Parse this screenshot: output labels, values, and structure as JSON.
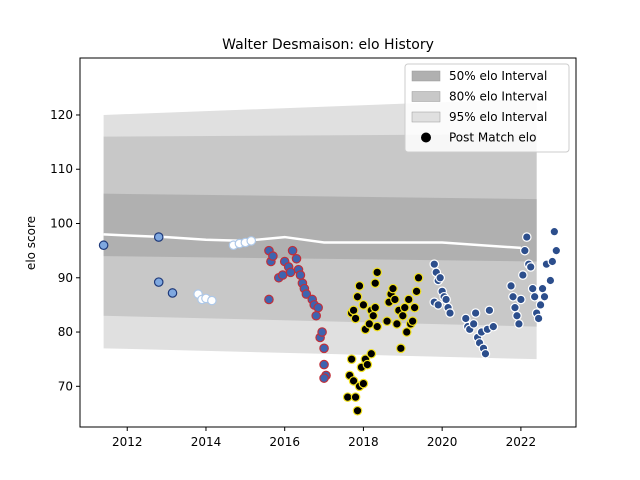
{
  "chart_data": {
    "type": "scatter",
    "title": "Walter Desmaison: elo History",
    "xlabel": "",
    "ylabel": "elo score",
    "xlim": [
      2010.8,
      2023.4
    ],
    "ylim": [
      62.5,
      130.5
    ],
    "xticks": [
      2012,
      2014,
      2016,
      2018,
      2020,
      2022
    ],
    "yticks": [
      70,
      80,
      90,
      100,
      110,
      120
    ],
    "grid": false,
    "legend_position": "upper right",
    "intervals": [
      {
        "name": "50% elo Interval",
        "color": "#b0b0b0",
        "x": [
          2011.4,
          2022.4
        ],
        "lower": [
          94.0,
          93.0
        ],
        "upper": [
          105.5,
          104.5
        ]
      },
      {
        "name": "80% elo Interval",
        "color": "#c8c8c8",
        "x": [
          2011.4,
          2022.4
        ],
        "lower": [
          83.0,
          81.0
        ],
        "upper": [
          116.0,
          116.5
        ]
      },
      {
        "name": "95% elo Interval",
        "color": "#e0e0e0",
        "x": [
          2011.4,
          2022.4
        ],
        "lower": [
          77.0,
          75.0
        ],
        "upper": [
          120.0,
          123.0
        ]
      }
    ],
    "mean_line": {
      "color": "#ffffff",
      "points": [
        [
          2011.4,
          98.0
        ],
        [
          2012.0,
          97.8
        ],
        [
          2013.0,
          97.5
        ],
        [
          2014.0,
          97.0
        ],
        [
          2015.0,
          96.8
        ],
        [
          2016.0,
          97.5
        ],
        [
          2017.0,
          96.5
        ],
        [
          2018.0,
          96.5
        ],
        [
          2019.0,
          96.5
        ],
        [
          2020.0,
          96.5
        ],
        [
          2021.0,
          96.0
        ],
        [
          2022.0,
          95.5
        ]
      ]
    },
    "series": [
      {
        "name": "Post Match elo",
        "fill": "#7fa8e0",
        "edge": "#1f3a7a",
        "points": [
          [
            2011.4,
            96.0
          ],
          [
            2012.8,
            97.5
          ],
          [
            2012.8,
            89.2
          ],
          [
            2013.15,
            87.2
          ]
        ]
      },
      {
        "fill": "#ffffff",
        "edge": "#aec8e8",
        "points": [
          [
            2013.8,
            87.0
          ],
          [
            2013.9,
            86.0
          ],
          [
            2014.0,
            86.2
          ],
          [
            2014.15,
            85.8
          ],
          [
            2014.7,
            96.0
          ],
          [
            2014.85,
            96.3
          ],
          [
            2015.0,
            96.5
          ],
          [
            2015.15,
            96.8
          ]
        ]
      },
      {
        "fill": "#3e64b0",
        "edge": "#c0303a",
        "points": [
          [
            2015.6,
            86.0
          ],
          [
            2015.6,
            95.0
          ],
          [
            2015.65,
            93.0
          ],
          [
            2015.7,
            94.0
          ],
          [
            2015.85,
            90.0
          ],
          [
            2015.95,
            90.5
          ],
          [
            2016.0,
            93.0
          ],
          [
            2016.1,
            92.0
          ],
          [
            2016.15,
            91.0
          ],
          [
            2016.2,
            95.0
          ],
          [
            2016.3,
            93.5
          ],
          [
            2016.35,
            91.5
          ],
          [
            2016.4,
            90.5
          ],
          [
            2016.45,
            89.0
          ],
          [
            2016.5,
            88.0
          ],
          [
            2016.55,
            87.0
          ],
          [
            2016.7,
            86.0
          ],
          [
            2016.75,
            85.0
          ],
          [
            2016.8,
            83.0
          ],
          [
            2016.85,
            84.5
          ],
          [
            2016.9,
            79.0
          ],
          [
            2016.95,
            80.0
          ],
          [
            2017.0,
            77.0
          ],
          [
            2017.0,
            74.0
          ],
          [
            2017.05,
            72.0
          ],
          [
            2017.0,
            71.5
          ]
        ]
      },
      {
        "fill": "#000000",
        "edge": "#f0e020",
        "points": [
          [
            2017.6,
            68.0
          ],
          [
            2017.65,
            72.0
          ],
          [
            2017.7,
            75.0
          ],
          [
            2017.75,
            71.0
          ],
          [
            2017.8,
            68.0
          ],
          [
            2017.85,
            65.5
          ],
          [
            2017.9,
            70.0
          ],
          [
            2017.95,
            73.5
          ],
          [
            2018.0,
            70.5
          ],
          [
            2018.05,
            75.0
          ],
          [
            2018.1,
            74.0
          ],
          [
            2018.2,
            76.0
          ],
          [
            2017.7,
            83.5
          ],
          [
            2017.75,
            84.0
          ],
          [
            2017.8,
            82.5
          ],
          [
            2017.85,
            86.5
          ],
          [
            2017.9,
            88.5
          ],
          [
            2018.0,
            85.0
          ],
          [
            2018.05,
            80.5
          ],
          [
            2018.15,
            81.5
          ],
          [
            2018.2,
            84.0
          ],
          [
            2018.25,
            83.0
          ],
          [
            2018.3,
            84.5
          ],
          [
            2018.35,
            81.0
          ],
          [
            2018.3,
            89.0
          ],
          [
            2018.35,
            91.0
          ],
          [
            2018.6,
            82.0
          ],
          [
            2018.65,
            85.5
          ],
          [
            2018.7,
            87.0
          ],
          [
            2018.75,
            88.0
          ],
          [
            2018.8,
            86.0
          ],
          [
            2018.85,
            81.5
          ],
          [
            2018.9,
            84.0
          ],
          [
            2018.95,
            77.0
          ],
          [
            2019.0,
            83.0
          ],
          [
            2019.05,
            84.5
          ],
          [
            2019.1,
            80.0
          ],
          [
            2019.15,
            86.0
          ],
          [
            2019.2,
            81.5
          ],
          [
            2019.25,
            82.0
          ],
          [
            2019.3,
            84.5
          ],
          [
            2019.35,
            87.5
          ],
          [
            2019.4,
            90.0
          ]
        ]
      },
      {
        "fill": "#2c4e8c",
        "edge": "#ffffff",
        "points": [
          [
            2019.8,
            92.5
          ],
          [
            2019.85,
            91.0
          ],
          [
            2019.9,
            89.5
          ],
          [
            2019.95,
            90.0
          ],
          [
            2020.0,
            87.5
          ],
          [
            2020.05,
            86.5
          ],
          [
            2019.8,
            85.5
          ],
          [
            2019.9,
            85.0
          ],
          [
            2020.1,
            86.0
          ],
          [
            2020.15,
            84.5
          ],
          [
            2020.2,
            83.5
          ],
          [
            2020.6,
            82.5
          ],
          [
            2020.65,
            81.0
          ],
          [
            2020.7,
            80.5
          ],
          [
            2020.8,
            81.5
          ],
          [
            2020.85,
            83.5
          ],
          [
            2020.9,
            79.0
          ],
          [
            2020.95,
            78.0
          ],
          [
            2021.0,
            80.0
          ],
          [
            2021.05,
            77.0
          ],
          [
            2021.1,
            76.0
          ],
          [
            2021.15,
            80.5
          ],
          [
            2021.2,
            84.0
          ],
          [
            2021.3,
            81.0
          ],
          [
            2021.75,
            88.5
          ],
          [
            2021.8,
            86.5
          ],
          [
            2021.85,
            84.5
          ],
          [
            2021.9,
            83.0
          ],
          [
            2021.95,
            81.5
          ],
          [
            2022.0,
            86.0
          ],
          [
            2022.05,
            90.5
          ],
          [
            2022.1,
            95.0
          ],
          [
            2022.15,
            97.5
          ],
          [
            2022.2,
            92.5
          ],
          [
            2022.25,
            92.0
          ],
          [
            2022.3,
            88.0
          ],
          [
            2022.35,
            86.5
          ],
          [
            2022.4,
            83.5
          ],
          [
            2022.45,
            82.5
          ],
          [
            2022.5,
            85.0
          ],
          [
            2022.55,
            88.0
          ],
          [
            2022.6,
            86.5
          ],
          [
            2022.65,
            92.5
          ],
          [
            2022.75,
            89.5
          ],
          [
            2022.8,
            93.0
          ],
          [
            2022.85,
            98.5
          ],
          [
            2022.9,
            95.0
          ]
        ]
      }
    ]
  }
}
